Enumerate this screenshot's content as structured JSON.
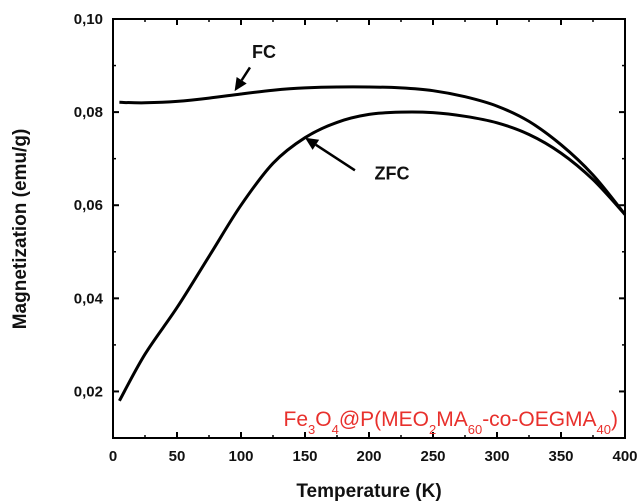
{
  "chart_data": {
    "type": "line",
    "xlabel": "Temperature (K)",
    "ylabel": "Magnetization (emu/g)",
    "xlim": [
      0,
      400
    ],
    "ylim": [
      0.01,
      0.1
    ],
    "xticks": [
      0,
      50,
      100,
      150,
      200,
      250,
      300,
      350,
      400
    ],
    "xtick_labels": [
      "0",
      "50",
      "100",
      "150",
      "200",
      "250",
      "300",
      "350",
      "400"
    ],
    "yticks": [
      0.02,
      0.04,
      0.06,
      0.08,
      0.1
    ],
    "ytick_labels": [
      "0,02",
      "0,04",
      "0,06",
      "0,08",
      "0,10"
    ],
    "grid": false,
    "series": [
      {
        "name": "FC",
        "x": [
          5,
          25,
          50,
          75,
          100,
          125,
          150,
          175,
          200,
          225,
          250,
          275,
          300,
          325,
          350,
          375,
          400
        ],
        "y": [
          0.0821,
          0.082,
          0.0823,
          0.083,
          0.0839,
          0.0847,
          0.0852,
          0.0854,
          0.0854,
          0.0852,
          0.0846,
          0.0833,
          0.0813,
          0.078,
          0.073,
          0.0665,
          0.058
        ]
      },
      {
        "name": "ZFC",
        "x": [
          5,
          25,
          50,
          75,
          100,
          125,
          150,
          175,
          200,
          225,
          250,
          275,
          300,
          325,
          350,
          375,
          400
        ],
        "y": [
          0.018,
          0.028,
          0.038,
          0.049,
          0.06,
          0.069,
          0.0745,
          0.0778,
          0.0795,
          0.08,
          0.0799,
          0.0791,
          0.0777,
          0.0752,
          0.0712,
          0.0655,
          0.058
        ]
      }
    ],
    "annotations": [
      {
        "label": "FC",
        "text_at": [
          118,
          0.0916
        ],
        "arrow_from": [
          107,
          0.0896
        ],
        "arrow_to": [
          95,
          0.0845
        ]
      },
      {
        "label": "ZFC",
        "text_at": [
          218,
          0.0655
        ],
        "arrow_from": [
          189,
          0.0675
        ],
        "arrow_to": [
          150,
          0.0745
        ]
      }
    ],
    "sample_label": {
      "parts": [
        {
          "t": "Fe",
          "sub": false
        },
        {
          "t": "3",
          "sub": true
        },
        {
          "t": "O",
          "sub": false
        },
        {
          "t": "4",
          "sub": true
        },
        {
          "t": "@P(MEO",
          "sub": false
        },
        {
          "t": "2",
          "sub": true
        },
        {
          "t": "MA",
          "sub": false
        },
        {
          "t": "60",
          "sub": true
        },
        {
          "t": "-co-OEGMA",
          "sub": false
        },
        {
          "t": "40",
          "sub": true
        },
        {
          "t": ")",
          "sub": false
        }
      ],
      "color": "#e8302c"
    }
  }
}
